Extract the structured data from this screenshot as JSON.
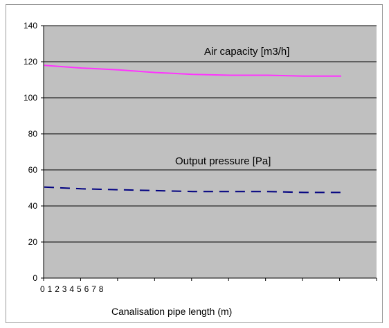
{
  "chart_data": {
    "type": "line",
    "title": "",
    "xlabel": "Canalisation pipe length (m)",
    "ylabel": "",
    "ylim": [
      0,
      140
    ],
    "yticks": [
      0,
      20,
      40,
      60,
      80,
      100,
      120,
      140
    ],
    "x_tick_labels": [
      "0",
      "1",
      "2",
      "3",
      "4",
      "5",
      "6",
      "7",
      "8"
    ],
    "grid": true,
    "legend": "none",
    "plot_background": "#c0c0c0",
    "annotations": [
      {
        "text": "Air capacity  [m3/h]",
        "series": "air"
      },
      {
        "text": "Output pressure [Pa]",
        "series": "pressure"
      }
    ],
    "series": [
      {
        "id": "air",
        "color": "#ff33ff",
        "style": "solid",
        "x": [
          0,
          1,
          2,
          3,
          4,
          5,
          6,
          7,
          8
        ],
        "values": [
          118,
          116.5,
          115.5,
          114,
          113,
          112.5,
          112.5,
          112,
          112
        ]
      },
      {
        "id": "pressure",
        "color": "#000080",
        "style": "dashed",
        "x": [
          0,
          1,
          2,
          3,
          4,
          5,
          6,
          7,
          8
        ],
        "values": [
          50.5,
          49.5,
          49,
          48.5,
          48,
          48,
          48,
          47.5,
          47.5
        ]
      }
    ]
  }
}
